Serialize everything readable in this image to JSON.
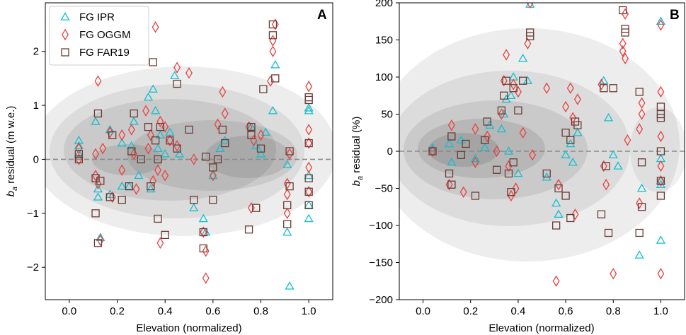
{
  "chart_data": [
    {
      "panel": "A",
      "type": "scatter",
      "title": "",
      "panel_label": "A",
      "xlabel": "Elevation (normalized)",
      "ylabel_prefix": "b",
      "ylabel_sub": "a",
      "ylabel_suffix": " residual (m w.e.)",
      "xlim": [
        -0.1,
        1.1
      ],
      "ylim": [
        -2.6,
        2.9
      ],
      "xticks": [
        0.0,
        0.2,
        0.4,
        0.6,
        0.8,
        1.0
      ],
      "xtick_labels": [
        "0.0",
        "0.2",
        "0.4",
        "0.6",
        "0.8",
        "1.0"
      ],
      "yticks": [
        -2,
        -1,
        0,
        1,
        2
      ],
      "ytick_labels": [
        "−2",
        "−1",
        "0",
        "1",
        "2"
      ],
      "zero_line": 0,
      "legend_position": "top-left",
      "density_background": "grey kernel density contours",
      "series": [
        {
          "name": "FG IPR",
          "marker": "triangle",
          "color": "#17becf",
          "x": [
            0.04,
            0.04,
            0.04,
            0.11,
            0.12,
            0.12,
            0.13,
            0.17,
            0.17,
            0.22,
            0.22,
            0.25,
            0.26,
            0.27,
            0.29,
            0.33,
            0.34,
            0.35,
            0.36,
            0.37,
            0.38,
            0.4,
            0.42,
            0.44,
            0.46,
            0.52,
            0.56,
            0.57,
            0.6,
            0.63,
            0.65,
            0.76,
            0.78,
            0.8,
            0.82,
            0.85,
            0.86,
            0.91,
            0.91,
            0.92,
            1.0,
            1.0,
            1.0,
            1.0,
            1.0
          ],
          "y": [
            0.35,
            0.25,
            0.1,
            0.7,
            -0.55,
            -0.7,
            -1.45,
            0.55,
            -0.65,
            -0.5,
            0.3,
            -0.5,
            0.25,
            0.7,
            -0.3,
            1.15,
            -0.55,
            1.3,
            0.9,
            0.2,
            0.45,
            0.1,
            0.5,
            1.55,
            0.1,
            -0.9,
            -1.1,
            -1.35,
            -0.3,
            0.2,
            0.35,
            0.6,
            0.25,
            0.1,
            0.5,
            0.9,
            1.75,
            -1.35,
            -0.1,
            -2.35,
            0.9,
            0.95,
            -0.3,
            -0.85,
            -1.1
          ]
        },
        {
          "name": "FG OGGM",
          "marker": "diamond",
          "color": "#e8433f",
          "x": [
            0.04,
            0.04,
            0.11,
            0.11,
            0.12,
            0.12,
            0.13,
            0.14,
            0.17,
            0.18,
            0.22,
            0.22,
            0.26,
            0.27,
            0.28,
            0.32,
            0.33,
            0.34,
            0.35,
            0.36,
            0.37,
            0.38,
            0.38,
            0.4,
            0.4,
            0.42,
            0.45,
            0.45,
            0.5,
            0.52,
            0.56,
            0.57,
            0.57,
            0.6,
            0.62,
            0.64,
            0.65,
            0.75,
            0.76,
            0.77,
            0.8,
            0.84,
            0.85,
            0.85,
            0.86,
            0.91,
            0.91,
            0.91,
            0.92,
            1.0,
            1.0,
            1.0,
            1.0,
            1.0
          ],
          "y": [
            0.2,
            0.0,
            -0.3,
            0.1,
            1.45,
            -0.45,
            -1.5,
            0.2,
            0.5,
            -0.7,
            0.45,
            -0.2,
            0.55,
            0.1,
            -0.55,
            0.9,
            0.2,
            0.45,
            -0.4,
            2.45,
            -0.2,
            0.7,
            -1.55,
            0.6,
            -0.3,
            0.35,
            1.7,
            0.25,
            1.6,
            0.0,
            -1.35,
            -1.7,
            -2.2,
            -0.3,
            0.65,
            1.25,
            0.85,
            0.6,
            -0.9,
            0.35,
            0.45,
            1.45,
            2.0,
            2.2,
            2.5,
            -0.45,
            -0.65,
            -1.0,
            0.1,
            1.35,
            0.55,
            0.3,
            -0.15,
            -0.6
          ]
        },
        {
          "name": "FG FAR19",
          "marker": "square",
          "color": "#6b3c36",
          "x": [
            0.04,
            0.04,
            0.11,
            0.11,
            0.12,
            0.12,
            0.13,
            0.17,
            0.18,
            0.22,
            0.25,
            0.26,
            0.27,
            0.3,
            0.33,
            0.34,
            0.35,
            0.36,
            0.37,
            0.37,
            0.38,
            0.4,
            0.42,
            0.45,
            0.45,
            0.5,
            0.52,
            0.56,
            0.56,
            0.57,
            0.6,
            0.6,
            0.62,
            0.64,
            0.65,
            0.75,
            0.76,
            0.76,
            0.78,
            0.8,
            0.81,
            0.85,
            0.85,
            0.86,
            0.91,
            0.91,
            0.92,
            0.92,
            1.0,
            1.0,
            1.0,
            1.0,
            1.0,
            1.0
          ],
          "y": [
            0.1,
            0.0,
            -0.35,
            -1.0,
            -1.55,
            0.85,
            -0.4,
            -0.7,
            0.45,
            -0.75,
            -0.5,
            0.15,
            0.85,
            0.0,
            0.6,
            -0.5,
            1.8,
            0.35,
            0.0,
            -1.1,
            0.6,
            -1.4,
            0.35,
            1.4,
            0.2,
            0.55,
            -0.75,
            -1.35,
            -1.65,
            0.05,
            -0.75,
            -0.15,
            0.0,
            0.55,
            0.3,
            -1.3,
            0.6,
            0.45,
            -0.9,
            0.2,
            1.3,
            2.5,
            2.3,
            1.5,
            -1.2,
            -0.85,
            -0.5,
            0.15,
            1.1,
            1.15,
            0.3,
            -0.35,
            -0.6,
            -0.85
          ]
        }
      ]
    },
    {
      "panel": "B",
      "type": "scatter",
      "title": "",
      "panel_label": "B",
      "xlabel": "Elevation (normalized)",
      "ylabel_prefix": "b",
      "ylabel_sub": "a",
      "ylabel_suffix": " residual (%)",
      "xlim": [
        -0.1,
        1.1
      ],
      "ylim": [
        -200,
        200
      ],
      "xticks": [
        0.0,
        0.2,
        0.4,
        0.6,
        0.8,
        1.0
      ],
      "xtick_labels": [
        "0.0",
        "0.2",
        "0.4",
        "0.6",
        "0.8",
        "1.0"
      ],
      "yticks": [
        -200,
        -150,
        -100,
        -50,
        0,
        50,
        100,
        150,
        200
      ],
      "ytick_labels": [
        "−200",
        "−150",
        "−100",
        "−50",
        "0",
        "50",
        "100",
        "150",
        "200"
      ],
      "zero_line": 0,
      "density_background": "grey kernel density contours",
      "series": [
        {
          "name": "FG IPR",
          "marker": "triangle",
          "color": "#17becf",
          "x": [
            0.04,
            0.11,
            0.12,
            0.16,
            0.22,
            0.26,
            0.28,
            0.33,
            0.34,
            0.35,
            0.36,
            0.37,
            0.38,
            0.4,
            0.42,
            0.44,
            0.45,
            0.52,
            0.56,
            0.57,
            0.6,
            0.62,
            0.63,
            0.65,
            0.76,
            0.78,
            0.8,
            0.82,
            0.91,
            0.92,
            1.0,
            1.0,
            1.0,
            1.0,
            1.0
          ],
          "y": [
            5,
            10,
            -15,
            15,
            -10,
            5,
            35,
            30,
            50,
            70,
            0,
            75,
            100,
            -30,
            125,
            95,
            198,
            -35,
            -70,
            -85,
            -5,
            10,
            -15,
            25,
            95,
            45,
            -5,
            -20,
            -140,
            -50,
            175,
            -120,
            -40,
            -45,
            -10
          ]
        },
        {
          "name": "FG OGGM",
          "marker": "diamond",
          "color": "#e8433f",
          "x": [
            0.04,
            0.11,
            0.12,
            0.17,
            0.22,
            0.22,
            0.27,
            0.31,
            0.33,
            0.34,
            0.35,
            0.36,
            0.37,
            0.38,
            0.39,
            0.4,
            0.42,
            0.44,
            0.45,
            0.46,
            0.52,
            0.56,
            0.57,
            0.6,
            0.62,
            0.63,
            0.64,
            0.65,
            0.75,
            0.76,
            0.77,
            0.8,
            0.84,
            0.84,
            0.85,
            0.85,
            0.86,
            0.91,
            0.91,
            0.92,
            0.92,
            1.0,
            1.0,
            1.0,
            1.0,
            1.0,
            1.0
          ],
          "y": [
            0,
            -45,
            35,
            -55,
            -15,
            30,
            20,
            0,
            50,
            95,
            130,
            -20,
            -60,
            90,
            -50,
            80,
            25,
            145,
            200,
            -5,
            85,
            -175,
            -45,
            60,
            85,
            45,
            -85,
            70,
            90,
            -20,
            -45,
            -165,
            135,
            145,
            185,
            125,
            15,
            30,
            -70,
            65,
            50,
            -165,
            170,
            80,
            20,
            -20,
            -40
          ]
        },
        {
          "name": "FG FAR19",
          "marker": "square",
          "color": "#6b3c36",
          "x": [
            0.04,
            0.11,
            0.12,
            0.12,
            0.16,
            0.18,
            0.22,
            0.26,
            0.27,
            0.31,
            0.33,
            0.34,
            0.35,
            0.36,
            0.37,
            0.38,
            0.38,
            0.4,
            0.42,
            0.45,
            0.45,
            0.52,
            0.56,
            0.57,
            0.6,
            0.6,
            0.62,
            0.62,
            0.64,
            0.65,
            0.75,
            0.76,
            0.77,
            0.78,
            0.8,
            0.84,
            0.85,
            0.85,
            0.91,
            0.91,
            0.92,
            0.92,
            1.0,
            1.0,
            1.0,
            1.0,
            1.0,
            1.0
          ],
          "y": [
            0,
            -30,
            20,
            -45,
            -5,
            10,
            -60,
            15,
            40,
            -25,
            55,
            75,
            95,
            -30,
            -55,
            -15,
            85,
            55,
            95,
            160,
            155,
            -30,
            -100,
            -50,
            -60,
            25,
            -90,
            15,
            40,
            35,
            -85,
            85,
            -20,
            -110,
            85,
            190,
            160,
            165,
            -110,
            80,
            -75,
            -15,
            50,
            60,
            45,
            0,
            -40,
            -60
          ]
        }
      ]
    }
  ]
}
